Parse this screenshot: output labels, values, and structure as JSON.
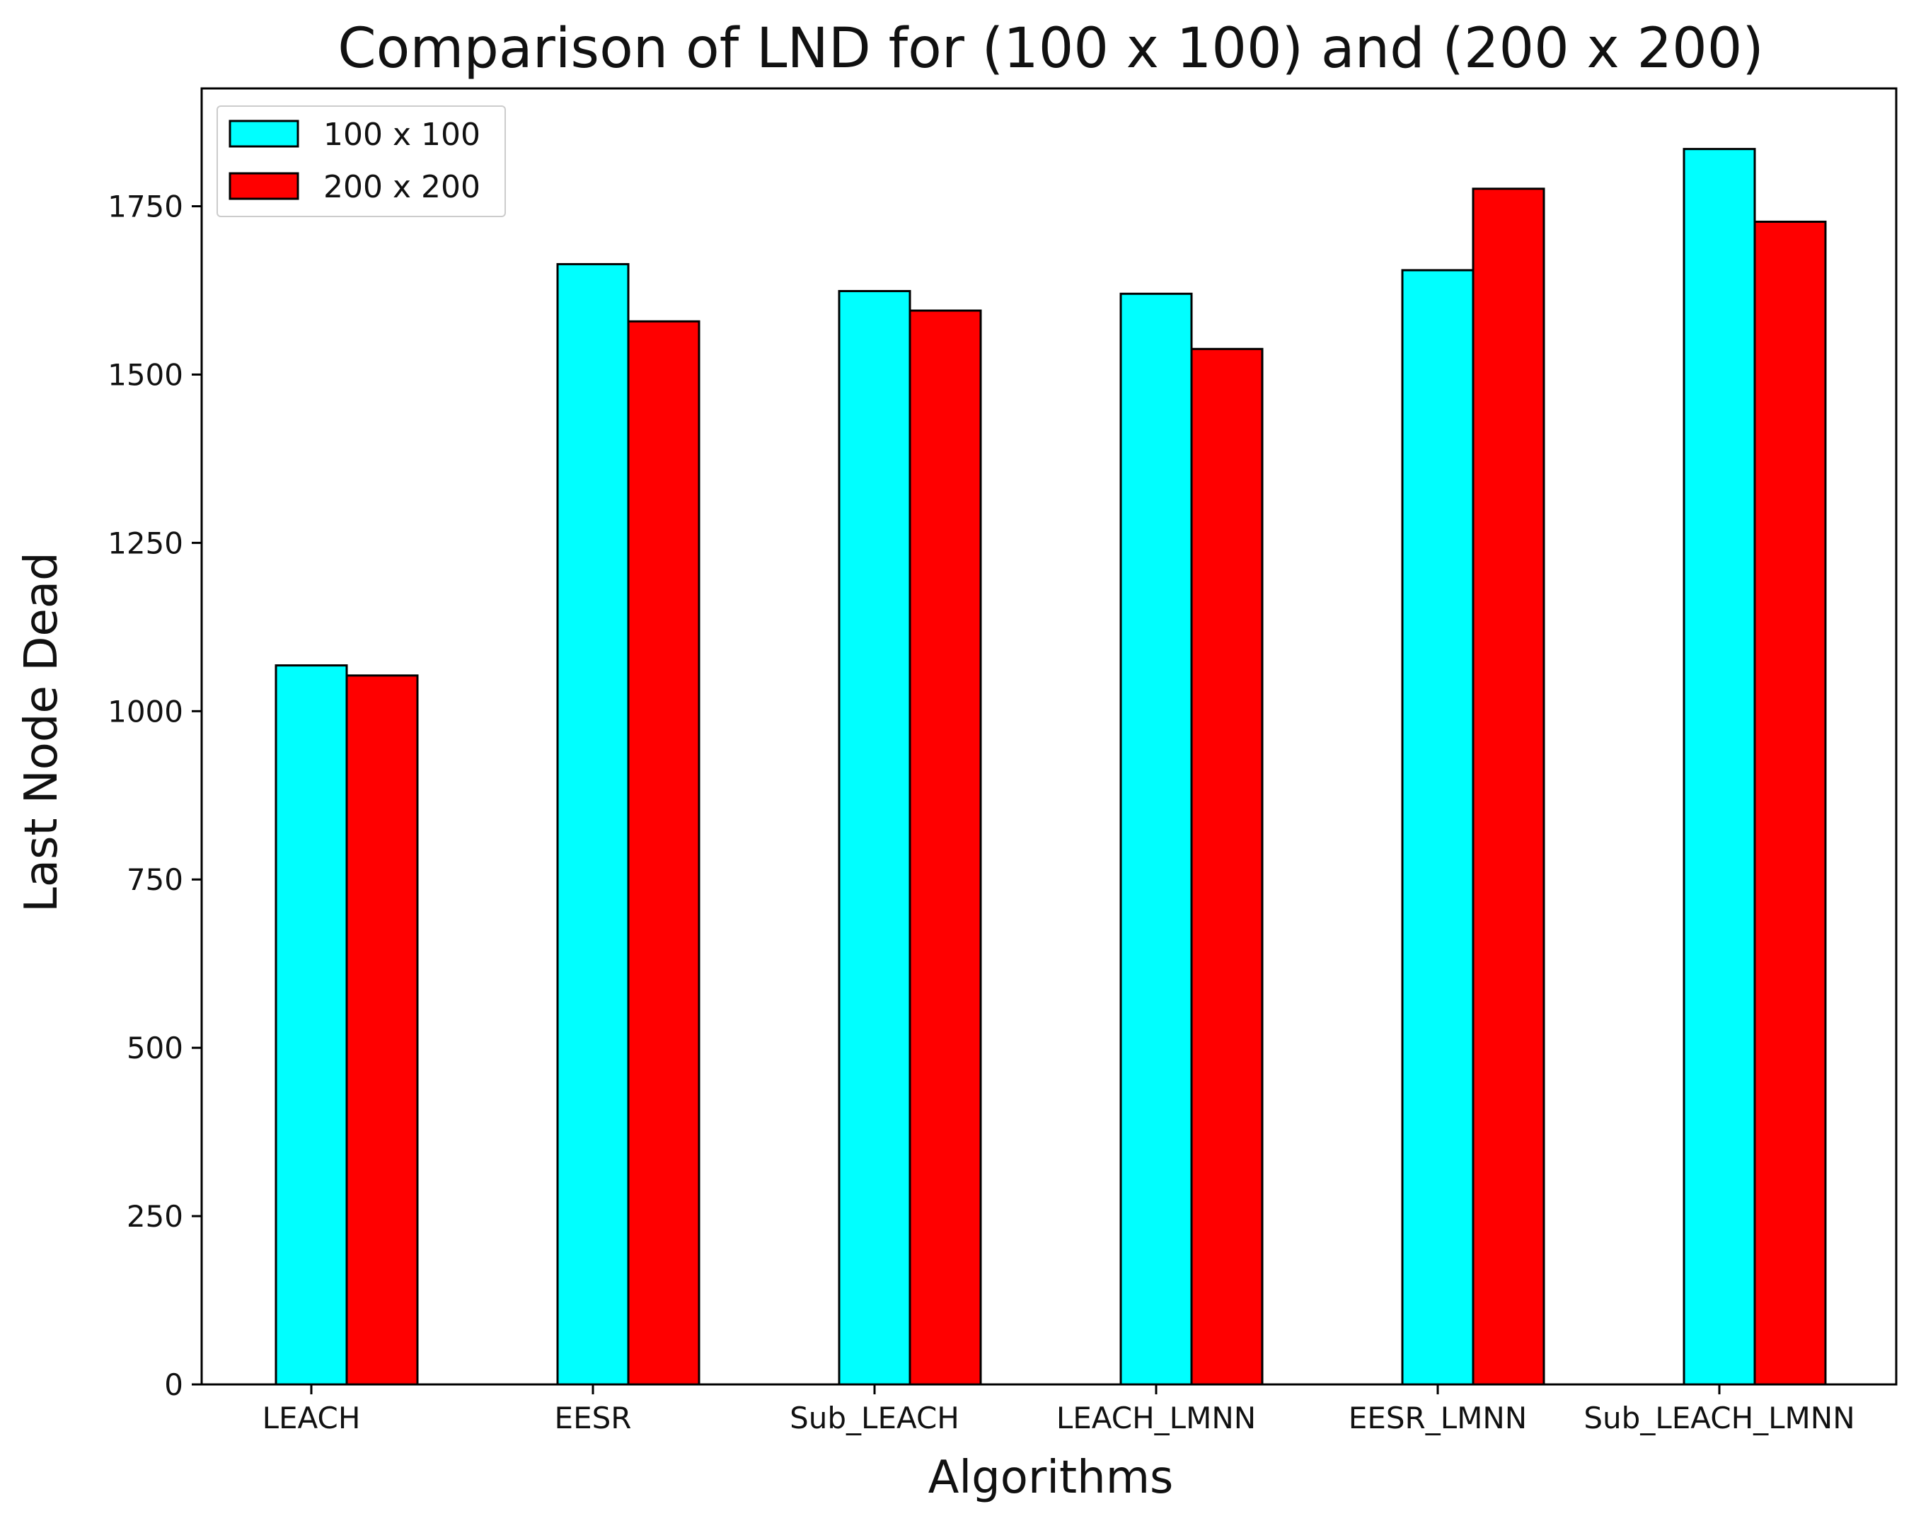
{
  "chart_data": {
    "type": "bar",
    "title": "Comparison of LND for (100 x 100) and (200 x 200)",
    "xlabel": "Algorithms",
    "ylabel": "Last Node Dead",
    "categories": [
      "LEACH",
      "EESR",
      "Sub_LEACH",
      "LEACH_LMNN",
      "EESR_LMNN",
      "Sub_LEACH_LMNN"
    ],
    "series": [
      {
        "name": "100 x 100",
        "color": "#00FFFF",
        "values": [
          1068,
          1664,
          1624,
          1620,
          1655,
          1835
        ]
      },
      {
        "name": "200 x 200",
        "color": "#FF0000",
        "values": [
          1053,
          1579,
          1595,
          1538,
          1776,
          1727
        ]
      }
    ],
    "yticks": [
      0,
      250,
      500,
      750,
      1000,
      1250,
      1500,
      1750
    ],
    "ylim": [
      0,
      1925
    ],
    "legend_position": "top-left",
    "grid": false
  }
}
